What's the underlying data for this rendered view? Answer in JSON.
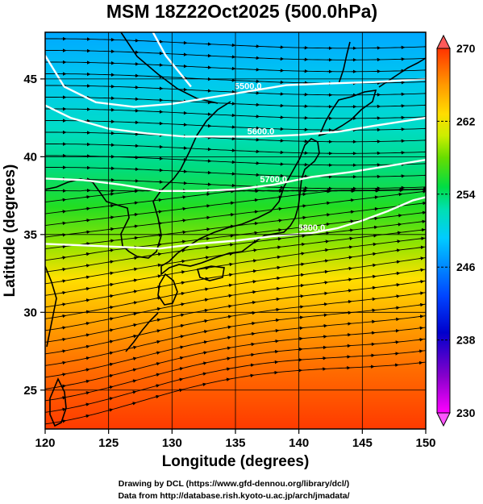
{
  "title": "MSM 18Z22Oct2025 (500.0hPa)",
  "x_axis": {
    "label": "Longitude (degrees)",
    "range": [
      120,
      150
    ],
    "ticks": [
      {
        "value": 120,
        "label": "120"
      },
      {
        "value": 125,
        "label": "125"
      },
      {
        "value": 130,
        "label": "130"
      },
      {
        "value": 135,
        "label": "135"
      },
      {
        "value": 140,
        "label": "140"
      },
      {
        "value": 145,
        "label": "145"
      },
      {
        "value": 150,
        "label": "150"
      }
    ]
  },
  "y_axis": {
    "label": "Latitude  (degrees)",
    "range": [
      22.5,
      48
    ],
    "ticks": [
      {
        "value": 25,
        "label": "25"
      },
      {
        "value": 30,
        "label": "30"
      },
      {
        "value": 35,
        "label": "35"
      },
      {
        "value": 40,
        "label": "40"
      },
      {
        "value": 45,
        "label": "45"
      }
    ]
  },
  "colorbar": {
    "min": 230,
    "max": 270,
    "labels": [
      {
        "value": 270,
        "label": "270"
      },
      {
        "value": 262,
        "label": "262"
      },
      {
        "value": 254,
        "label": "254"
      },
      {
        "value": 246,
        "label": "246"
      },
      {
        "value": 238,
        "label": "238"
      },
      {
        "value": 230,
        "label": "230"
      }
    ],
    "colors": [
      "#ff00ff",
      "#8800cc",
      "#0000cc",
      "#0044ff",
      "#0099ff",
      "#00ccff",
      "#00e0c0",
      "#00dd55",
      "#44dd00",
      "#aaee00",
      "#ffee00",
      "#ffbb00",
      "#ff8800",
      "#ff5500",
      "#ff2200"
    ]
  },
  "contours": [
    {
      "label": "5500.0",
      "points": [
        [
          120,
          46.5
        ],
        [
          121.5,
          44.5
        ],
        [
          124,
          43.5
        ],
        [
          127,
          43.2
        ],
        [
          130,
          43.4
        ],
        [
          133,
          43.8
        ],
        [
          136,
          44.2
        ],
        [
          139,
          44.6
        ],
        [
          142,
          44.7
        ],
        [
          146,
          44.8
        ],
        [
          150,
          45
        ]
      ]
    },
    {
      "label": "5600.0",
      "points": [
        [
          120,
          43.3
        ],
        [
          122,
          42.5
        ],
        [
          125,
          41.8
        ],
        [
          128,
          41.5
        ],
        [
          131,
          41.3
        ],
        [
          134,
          41.3
        ],
        [
          137,
          41.3
        ],
        [
          140,
          41.4
        ],
        [
          143,
          41.6
        ],
        [
          146,
          42
        ],
        [
          150,
          42.5
        ]
      ]
    },
    {
      "label": "5700.0",
      "points": [
        [
          120,
          38.6
        ],
        [
          123,
          38.5
        ],
        [
          126,
          38.2
        ],
        [
          129,
          37.8
        ],
        [
          132,
          37.8
        ],
        [
          135,
          37.9
        ],
        [
          138,
          38.2
        ],
        [
          141,
          38.7
        ],
        [
          144,
          39
        ],
        [
          147,
          39.4
        ],
        [
          150,
          39.8
        ]
      ]
    },
    {
      "label": "5800.0",
      "points": [
        [
          120,
          34.4
        ],
        [
          123,
          34.3
        ],
        [
          126,
          34.2
        ],
        [
          129,
          34.1
        ],
        [
          132,
          34.4
        ],
        [
          135,
          34.6
        ],
        [
          138,
          34.9
        ],
        [
          141,
          35.1
        ],
        [
          143,
          35.4
        ],
        [
          145,
          35.9
        ],
        [
          147,
          36.5
        ],
        [
          149,
          37.2
        ],
        [
          150,
          37.4
        ]
      ]
    },
    {
      "label": "",
      "points": [
        [
          128.5,
          48
        ],
        [
          129.5,
          46.5
        ],
        [
          130.5,
          45.5
        ],
        [
          131.5,
          44.5
        ]
      ]
    }
  ],
  "credits": {
    "line1": "Drawing by DCL (https://www.gfd-dennou.org/library/dcl/)",
    "line2": "Data from http://database.rish.kyoto-u.ac.jp/arch/jmadata/"
  }
}
